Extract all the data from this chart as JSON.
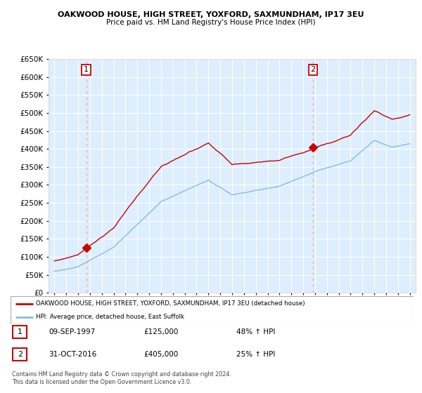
{
  "title1": "OAKWOOD HOUSE, HIGH STREET, YOXFORD, SAXMUNDHAM, IP17 3EU",
  "title2": "Price paid vs. HM Land Registry's House Price Index (HPI)",
  "legend_line1": "OAKWOOD HOUSE, HIGH STREET, YOXFORD, SAXMUNDHAM, IP17 3EU (detached house)",
  "legend_line2": "HPI: Average price, detached house, East Suffolk",
  "annotation1_num": "1",
  "annotation1_date": "09-SEP-1997",
  "annotation1_price": "£125,000",
  "annotation1_hpi": "48% ↑ HPI",
  "annotation2_num": "2",
  "annotation2_date": "31-OCT-2016",
  "annotation2_price": "£405,000",
  "annotation2_hpi": "25% ↑ HPI",
  "footnote": "Contains HM Land Registry data © Crown copyright and database right 2024.\nThis data is licensed under the Open Government Licence v3.0.",
  "sale1_year": 1997.69,
  "sale1_price": 125000,
  "sale2_year": 2016.83,
  "sale2_price": 405000,
  "house_color": "#cc0000",
  "hpi_color": "#87bdd8",
  "vline_color": "#ffaaaa",
  "marker_color": "#cc0000",
  "ylim_min": 0,
  "ylim_max": 650000,
  "xlim_min": 1994.5,
  "xlim_max": 2025.5,
  "bg_color": "#ddeeff"
}
